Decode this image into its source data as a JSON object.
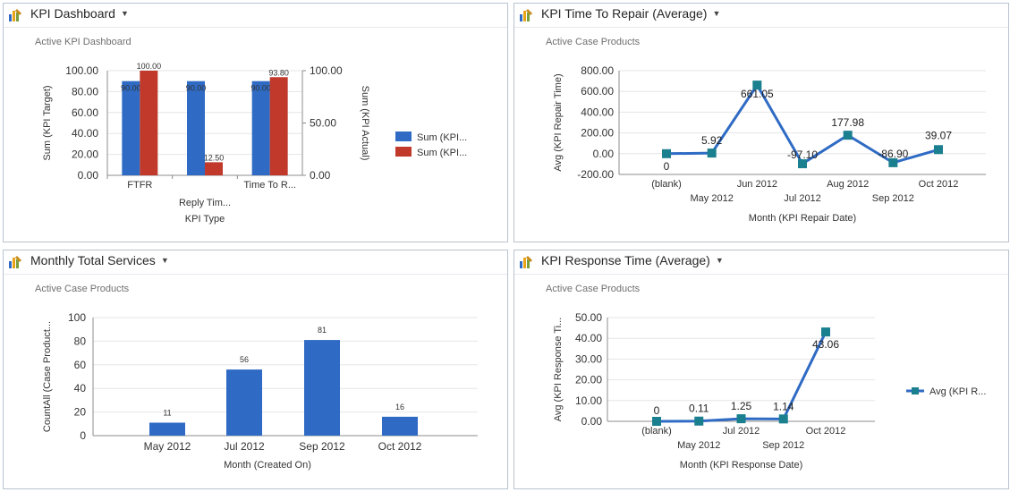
{
  "panels": [
    {
      "title": "KPI Dashboard",
      "view": "Active KPI Dashboard"
    },
    {
      "title": "KPI Time To Repair (Average)",
      "view": "Active Case Products"
    },
    {
      "title": "Monthly Total Services",
      "view": "Active Case Products"
    },
    {
      "title": "KPI Response Time (Average)",
      "view": "Active Case Products"
    }
  ],
  "colors": {
    "blue": "#2f6bc4",
    "red": "#c0392b",
    "teal": "#1a7f8f",
    "line": "#2f6bc4",
    "grid": "#e6e6e6",
    "axis": "#8c8c8c"
  },
  "chart_data": [
    {
      "type": "bar",
      "categories": [
        "FTFR",
        "Reply Tim...",
        "Time To R..."
      ],
      "category_labels_shown": [
        "FTFR",
        "",
        "Time To R..."
      ],
      "category_label_second_row": "Reply Tim...",
      "xlabel": "KPI Type",
      "ylabel": "Sum (KPI Target)",
      "y2label": "Sum (KPI Actual)",
      "ylim": [
        0,
        100
      ],
      "y_ticks": [
        "100.00",
        "80.00",
        "60.00",
        "40.00",
        "20.00",
        "0.00"
      ],
      "y2lim": [
        0,
        100
      ],
      "y2_ticks": [
        "100.00",
        "50.00",
        "0.00"
      ],
      "series": [
        {
          "name": "Sum (KPI...",
          "axis": "left",
          "values": [
            90,
            90,
            90
          ],
          "labels": [
            "90.00",
            "90.00",
            "90.00"
          ],
          "color": "#2f6bc4"
        },
        {
          "name": "Sum (KPI...",
          "axis": "right",
          "values": [
            100,
            12.5,
            93.8
          ],
          "labels": [
            "100.00",
            "12.50",
            "93.80"
          ],
          "color": "#c0392b"
        }
      ],
      "legend": "right",
      "grid": true
    },
    {
      "type": "line",
      "categories": [
        "(blank)",
        "May 2012",
        "Jun 2012",
        "Jul 2012",
        "Aug 2012",
        "Sep 2012",
        "Oct 2012"
      ],
      "values": [
        0,
        5.92,
        661.05,
        -97.1,
        177.98,
        -86.9,
        39.07
      ],
      "labels": [
        "0",
        "5.92",
        "661.05",
        "-97.10",
        "177.98",
        "-86.90",
        "39.07"
      ],
      "xlabel": "Month (KPI Repair Date)",
      "ylabel": "Avg (KPI Repair Time)",
      "ylim": [
        -200,
        800
      ],
      "y_ticks": [
        "800.00",
        "600.00",
        "400.00",
        "200.00",
        "0.00",
        "-200.00"
      ],
      "grid": true
    },
    {
      "type": "bar",
      "categories": [
        "May 2012",
        "Jul 2012",
        "Sep 2012",
        "Oct 2012"
      ],
      "values": [
        11,
        56,
        81,
        16
      ],
      "labels": [
        "11",
        "56",
        "81",
        "16"
      ],
      "xlabel": "Month (Created On)",
      "ylabel": "CountAll (Case Product...",
      "ylim": [
        0,
        100
      ],
      "y_ticks": [
        "100",
        "80",
        "60",
        "40",
        "20",
        "0"
      ],
      "grid": true
    },
    {
      "type": "line",
      "categories": [
        "(blank)",
        "May 2012",
        "Jul 2012",
        "Sep 2012",
        "Oct 2012"
      ],
      "values": [
        0,
        0.11,
        1.25,
        1.14,
        43.06
      ],
      "labels": [
        "0",
        "0.11",
        "1.25",
        "1.14",
        "43.06"
      ],
      "xlabel": "Month (KPI Response Date)",
      "ylabel": "Avg (KPI Response Ti...",
      "ylim": [
        0,
        50
      ],
      "y_ticks": [
        "50.00",
        "40.00",
        "30.00",
        "20.00",
        "10.00",
        "0.00"
      ],
      "legend_entry": "Avg (KPI R...",
      "legend": "right",
      "grid": true
    }
  ]
}
